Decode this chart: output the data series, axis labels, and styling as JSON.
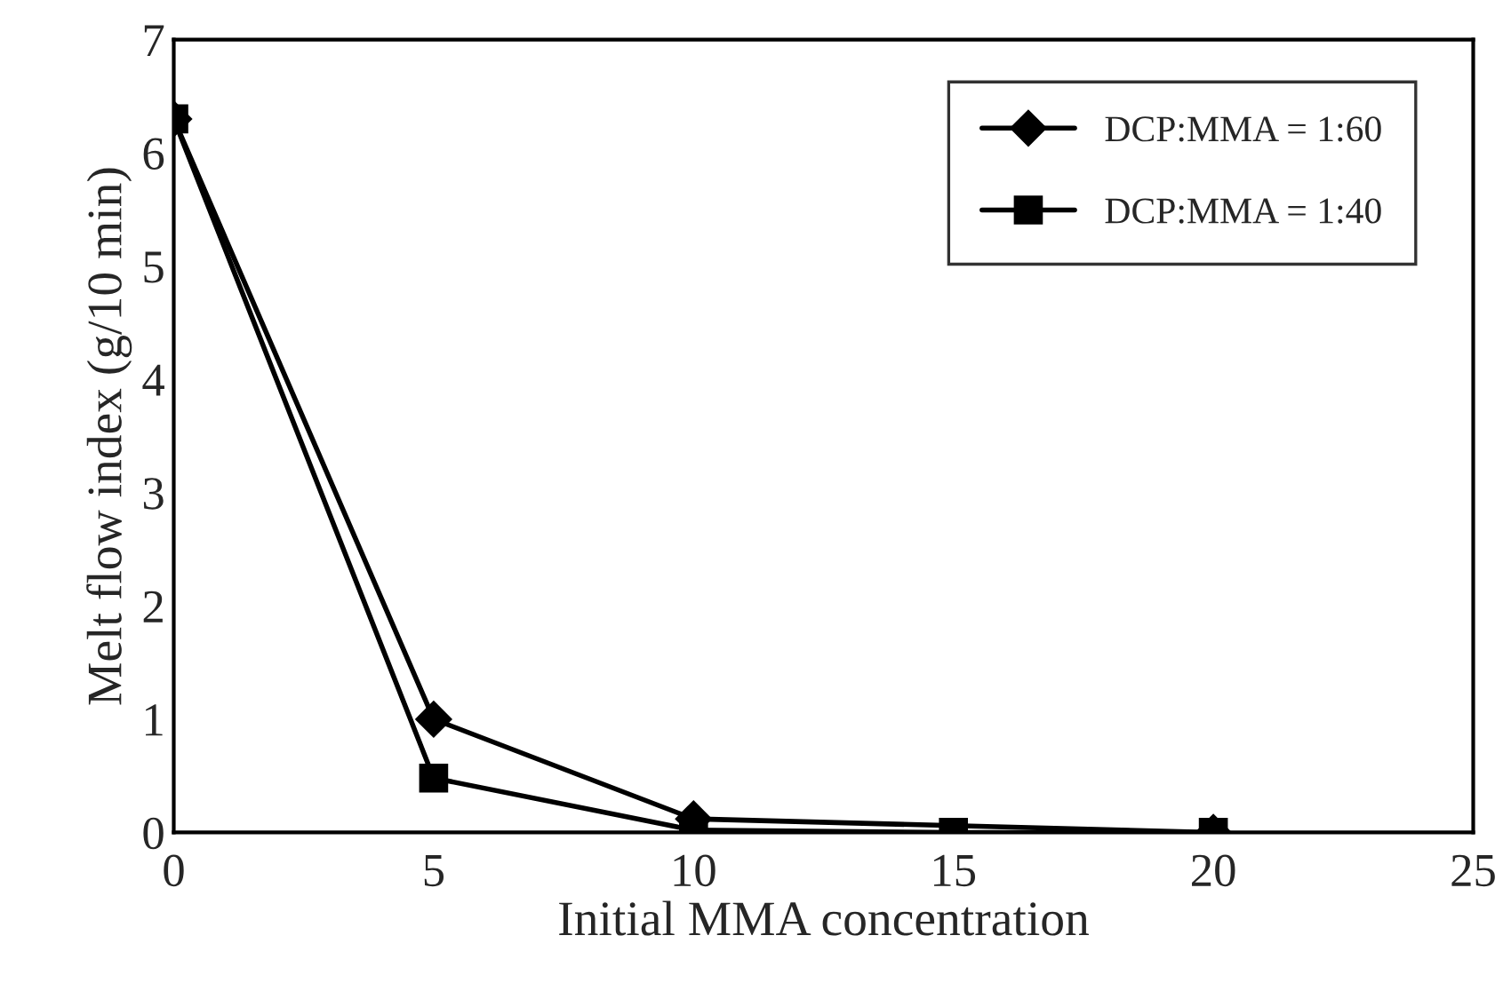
{
  "chart_data": {
    "type": "line",
    "xlabel": "Initial MMA concentration",
    "ylabel": "Melt flow index (g/10 min)",
    "x": [
      0,
      5,
      10,
      15,
      20
    ],
    "series": [
      {
        "name": "DCP:MMA = 1:60",
        "color": "#000000",
        "marker": "diamond",
        "values": [
          6.3,
          1.0,
          0.12,
          null,
          0.0
        ]
      },
      {
        "name": "DCP:MMA = 1:40",
        "color": "#000000",
        "marker": "square",
        "values": [
          6.3,
          0.48,
          0.02,
          0.0,
          0.0
        ]
      }
    ],
    "xlim": [
      0,
      25
    ],
    "xticks": [
      0,
      5,
      10,
      15,
      20,
      25
    ],
    "ylim": [
      0,
      7
    ],
    "yticks": [
      0,
      1,
      2,
      3,
      4,
      5,
      6,
      7
    ],
    "grid": false,
    "legend": "top right",
    "line_style": "solid"
  }
}
